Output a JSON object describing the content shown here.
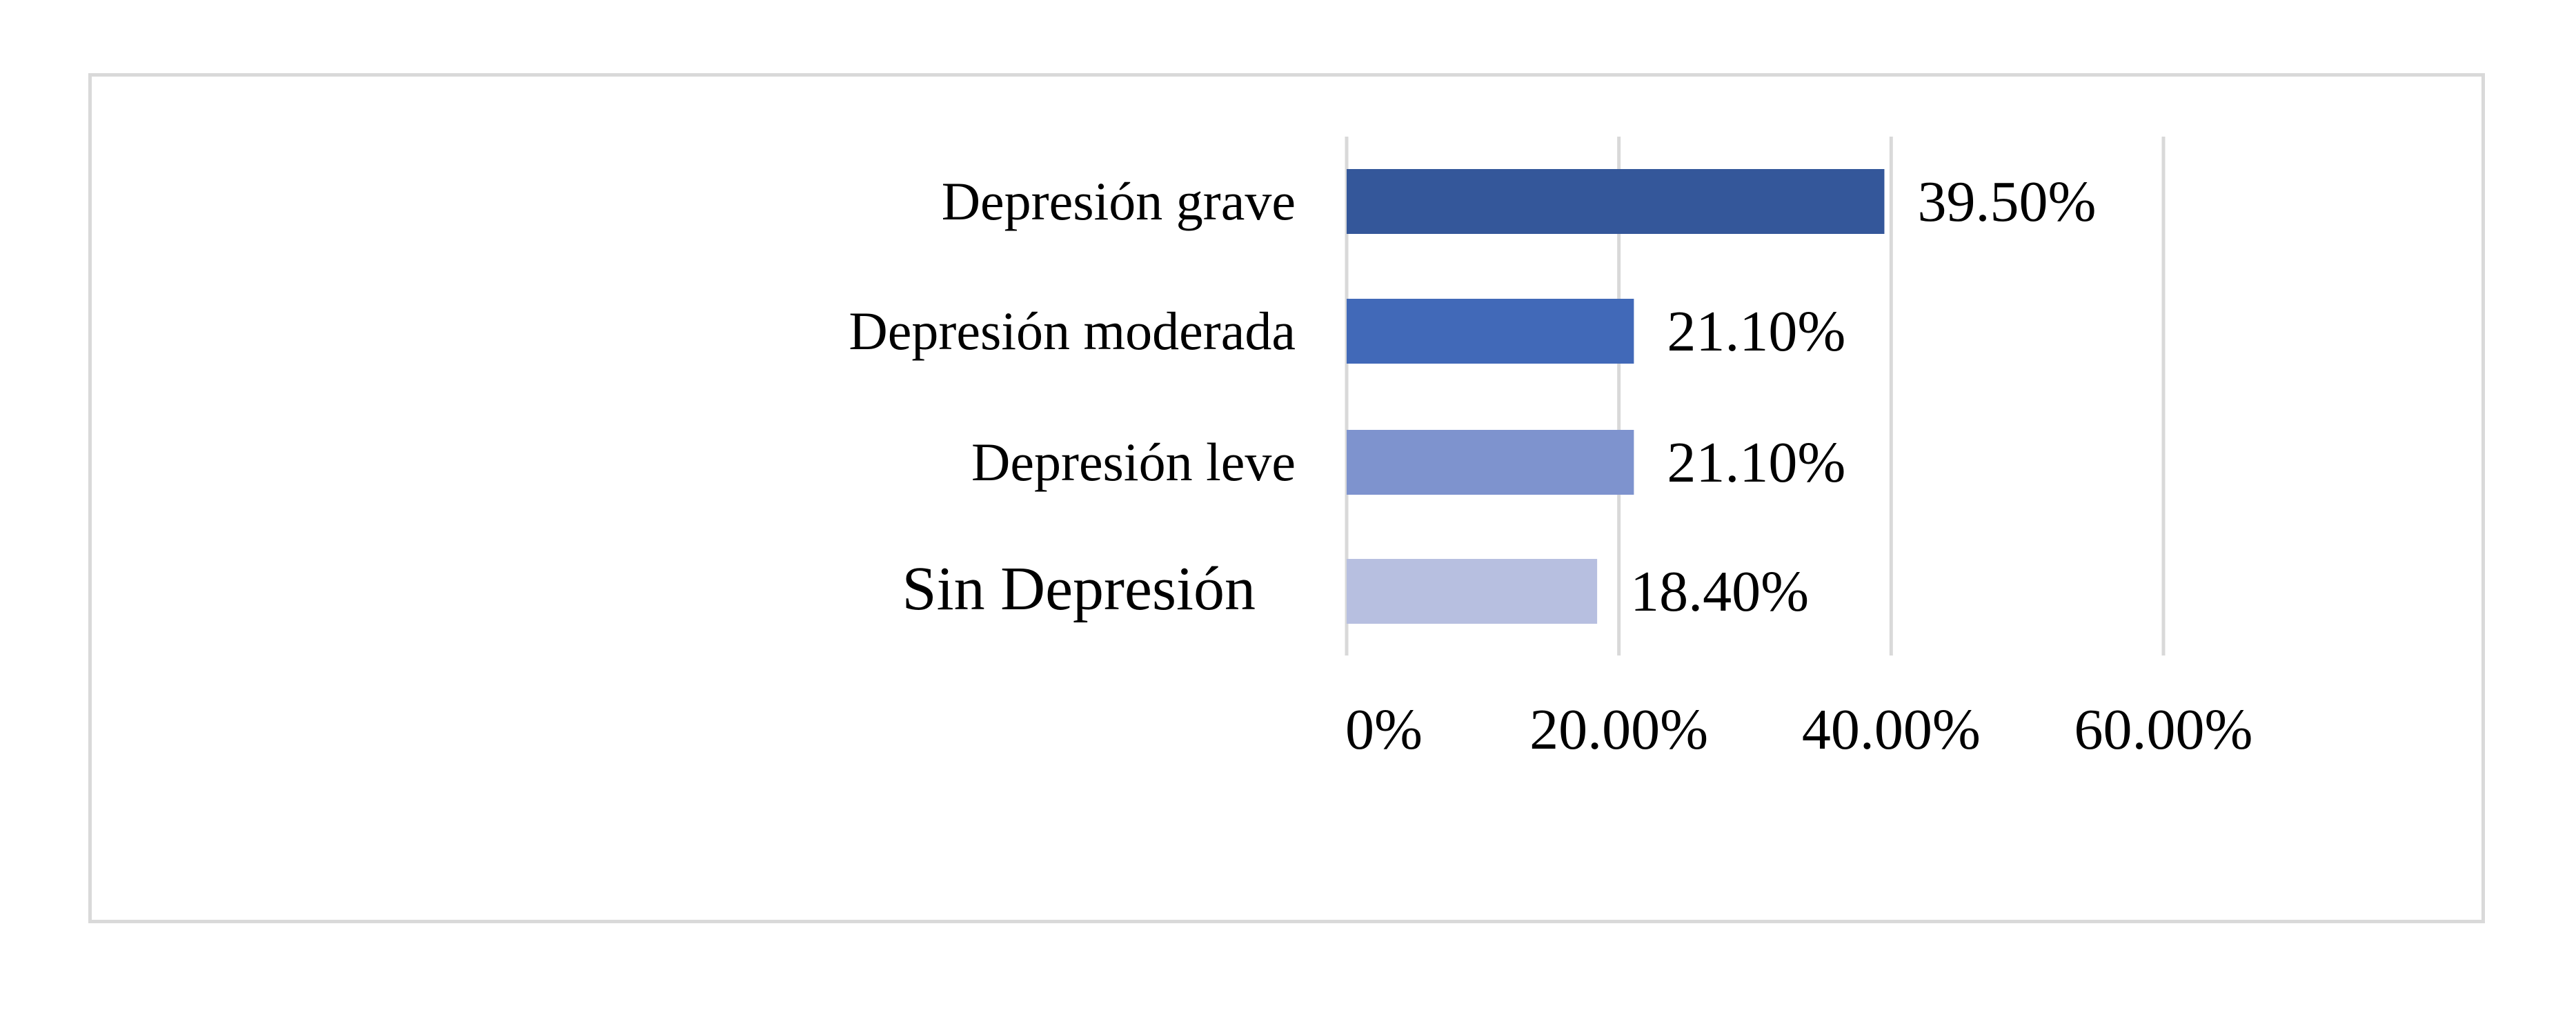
{
  "chart_data": {
    "type": "bar",
    "orientation": "horizontal",
    "categories": [
      "Depresión grave",
      "Depresión moderada",
      "Depresión leve",
      "Sin Depresión"
    ],
    "values": [
      39.5,
      21.1,
      21.1,
      18.4
    ],
    "value_labels": [
      "39.50%",
      "21.10%",
      "21.10%",
      "18.40%"
    ],
    "colors": [
      "#34579a",
      "#4169b8",
      "#7e93ce",
      "#b7bfe0"
    ],
    "xlim": [
      0,
      60
    ],
    "x_ticks": [
      0,
      20,
      40,
      60
    ],
    "x_tick_labels": [
      "0%",
      "20.00%",
      "40.00%",
      "60.00%"
    ],
    "grid": true,
    "grid_color": "#d9d9d9",
    "legend": false,
    "title": "",
    "xlabel": "",
    "ylabel": ""
  }
}
